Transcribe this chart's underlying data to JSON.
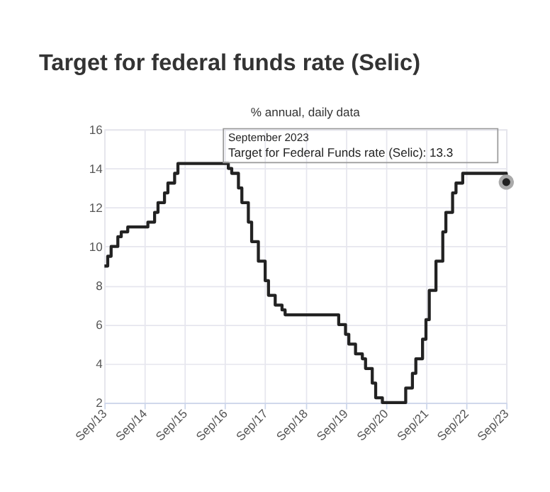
{
  "chart_data": {
    "type": "step",
    "title": "Target for federal funds rate (Selic)",
    "subtitle": "% annual, daily data",
    "x": [
      "2013-09",
      "2013-10",
      "2013-11",
      "2014-01",
      "2014-02",
      "2014-04",
      "2014-10",
      "2014-12",
      "2015-01",
      "2015-03",
      "2015-04",
      "2015-06",
      "2015-07",
      "2016-10",
      "2016-11",
      "2017-01",
      "2017-02",
      "2017-04",
      "2017-05",
      "2017-07",
      "2017-09",
      "2017-10",
      "2017-12",
      "2018-02",
      "2018-03",
      "2019-07",
      "2019-09",
      "2019-10",
      "2019-12",
      "2020-02",
      "2020-03",
      "2020-05",
      "2020-06",
      "2020-08",
      "2021-03",
      "2021-05",
      "2021-06",
      "2021-08",
      "2021-09",
      "2021-10",
      "2021-12",
      "2022-02",
      "2022-03",
      "2022-05",
      "2022-06",
      "2022-08",
      "2023-08",
      "2023-09"
    ],
    "series": [
      {
        "color": "#222222",
        "values": [
          9.0,
          9.5,
          10.0,
          10.5,
          10.75,
          11.0,
          11.25,
          11.75,
          12.25,
          12.75,
          13.25,
          13.75,
          14.25,
          14.0,
          13.75,
          13.0,
          12.25,
          11.25,
          10.25,
          9.25,
          8.25,
          7.5,
          7.0,
          6.75,
          6.5,
          6.0,
          5.5,
          5.0,
          4.5,
          4.25,
          3.75,
          3.0,
          2.25,
          2.0,
          2.75,
          3.5,
          4.25,
          5.25,
          6.25,
          7.75,
          9.25,
          10.75,
          11.75,
          12.75,
          13.25,
          13.75,
          13.75,
          13.3
        ]
      }
    ],
    "xlim": [
      "2013-09",
      "2023-09"
    ],
    "xticks": [
      {
        "value": "2013-09",
        "label": "Sep/13"
      },
      {
        "value": "2014-09",
        "label": "Sep/14"
      },
      {
        "value": "2015-09",
        "label": "Sep/15"
      },
      {
        "value": "2016-09",
        "label": "Sep/16"
      },
      {
        "value": "2017-09",
        "label": "Sep/17"
      },
      {
        "value": "2018-09",
        "label": "Sep/18"
      },
      {
        "value": "2019-09",
        "label": "Sep/19"
      },
      {
        "value": "2020-09",
        "label": "Sep/20"
      },
      {
        "value": "2021-09",
        "label": "Sep/21"
      },
      {
        "value": "2022-09",
        "label": "Sep/22"
      },
      {
        "value": "2023-09",
        "label": "Sep/23"
      }
    ],
    "ylim": [
      2,
      16
    ],
    "yticks": [
      2,
      4,
      6,
      8,
      10,
      12,
      14,
      16
    ],
    "grid": true,
    "line_style": "solid",
    "annotations": [
      "September 2023",
      "Target for Federal Funds rate (Selic): 13.3"
    ]
  }
}
